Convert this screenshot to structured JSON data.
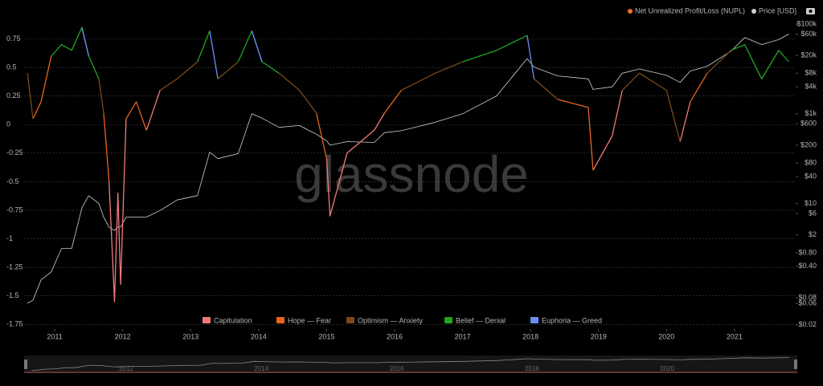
{
  "chart_data": {
    "type": "line",
    "header_series": {
      "name": "Net Unrealized Profit/Loss (NUPL)",
      "color": "#f07020"
    },
    "watermark": "glassnode",
    "x": [
      2010.6,
      2010.68,
      2010.8,
      2010.95,
      2011.1,
      2011.25,
      2011.4,
      2011.5,
      2011.65,
      2011.72,
      2011.8,
      2011.88,
      2011.93,
      2011.97,
      2012.05,
      2012.2,
      2012.35,
      2012.55,
      2012.8,
      2013.1,
      2013.28,
      2013.4,
      2013.7,
      2013.9,
      2014.05,
      2014.3,
      2014.6,
      2014.85,
      2015.0,
      2015.05,
      2015.3,
      2015.7,
      2015.85,
      2016.1,
      2016.6,
      2017.0,
      2017.5,
      2017.95,
      2018.05,
      2018.4,
      2018.85,
      2018.92,
      2019.2,
      2019.35,
      2019.6,
      2020.0,
      2020.2,
      2020.35,
      2020.6,
      2020.95,
      2021.15,
      2021.4,
      2021.65,
      2021.8
    ],
    "xlim": [
      2010.55,
      2021.9
    ],
    "xticks": [
      2011,
      2012,
      2013,
      2014,
      2015,
      2016,
      2017,
      2018,
      2019,
      2020,
      2021
    ],
    "ylim": [
      -1.79,
      0.88
    ],
    "yticks": [
      0.75,
      0.5,
      0.25,
      0,
      -0.25,
      -0.5,
      -0.75,
      -1,
      -1.25,
      -1.5,
      -1.75
    ],
    "y2lim": [
      0.016,
      100000
    ],
    "y2log": true,
    "y2ticks": [
      {
        "value": 100000,
        "label": "$100k"
      },
      {
        "value": 60000,
        "label": "$60k"
      },
      {
        "value": 20000,
        "label": "$20k"
      },
      {
        "value": 8000,
        "label": "$8k"
      },
      {
        "value": 4000,
        "label": "$4k"
      },
      {
        "value": 1000,
        "label": "$1k"
      },
      {
        "value": 600,
        "label": "$600"
      },
      {
        "value": 200,
        "label": "$200"
      },
      {
        "value": 80,
        "label": "$80"
      },
      {
        "value": 40,
        "label": "$40"
      },
      {
        "value": 10,
        "label": "$10"
      },
      {
        "value": 6,
        "label": "$6"
      },
      {
        "value": 2,
        "label": "$2"
      },
      {
        "value": 0.8,
        "label": "$0.80"
      },
      {
        "value": 0.4,
        "label": "$0.40"
      },
      {
        "value": 0.08,
        "label": "$0.08"
      },
      {
        "value": 0.06,
        "label": "$0.06"
      },
      {
        "value": 0.02,
        "label": "$0.02"
      }
    ],
    "grid": true,
    "navigator_ticks": [
      2012,
      2014,
      2016,
      2018,
      2020
    ],
    "series": [
      {
        "name": "Capitulation",
        "color": "#f07a7a",
        "values": [
          null,
          null,
          null,
          null,
          null,
          null,
          null,
          null,
          null,
          null,
          -0.5,
          -1.55,
          -0.6,
          -1.4,
          0.05,
          null,
          -0.05,
          0.3,
          null,
          null,
          null,
          null,
          null,
          null,
          null,
          null,
          null,
          null,
          -0.3,
          -0.8,
          -0.25,
          -0.05,
          0.1,
          null,
          null,
          null,
          null,
          null,
          null,
          null,
          null,
          -0.4,
          -0.1,
          0.3,
          null,
          null,
          -0.15,
          0.2,
          null,
          null,
          null,
          null,
          null,
          null
        ]
      },
      {
        "name": "Hope — Fear",
        "color": "#e8641e",
        "values": [
          null,
          0.05,
          0.2,
          0.6,
          null,
          null,
          null,
          null,
          null,
          0.1,
          -0.5,
          null,
          null,
          null,
          0.05,
          0.2,
          -0.05,
          null,
          null,
          null,
          null,
          null,
          null,
          null,
          null,
          null,
          null,
          0.1,
          -0.3,
          null,
          null,
          null,
          0.1,
          0.3,
          null,
          null,
          null,
          null,
          null,
          0.22,
          0.15,
          -0.4,
          null,
          null,
          null,
          null,
          null,
          0.2,
          0.45,
          null,
          null,
          null,
          null,
          null
        ]
      },
      {
        "name": "Optimism — Anxiety",
        "color": "#7a4a1c",
        "values": [
          0.45,
          0.05,
          null,
          null,
          null,
          null,
          null,
          null,
          0.4,
          0.1,
          null,
          null,
          null,
          null,
          null,
          null,
          null,
          0.3,
          0.4,
          0.55,
          null,
          0.4,
          0.55,
          null,
          null,
          0.45,
          0.3,
          0.1,
          null,
          null,
          null,
          null,
          null,
          0.3,
          0.45,
          0.55,
          null,
          null,
          0.4,
          0.22,
          null,
          null,
          null,
          0.3,
          0.45,
          0.3,
          -0.15,
          null,
          0.45,
          0.65,
          null,
          0.4,
          0.65,
          null
        ]
      },
      {
        "name": "Belief — Denial",
        "color": "#1fa51f",
        "values": [
          null,
          null,
          null,
          0.6,
          0.7,
          0.65,
          0.85,
          0.6,
          0.4,
          null,
          null,
          null,
          null,
          null,
          null,
          null,
          null,
          null,
          null,
          0.55,
          0.82,
          null,
          0.55,
          0.82,
          0.55,
          0.45,
          null,
          null,
          null,
          null,
          null,
          null,
          null,
          null,
          null,
          0.55,
          0.65,
          0.78,
          null,
          null,
          null,
          null,
          null,
          null,
          null,
          null,
          null,
          null,
          null,
          0.65,
          0.7,
          0.4,
          0.65,
          0.55
        ]
      },
      {
        "name": "Euphoria — Greed",
        "color": "#6a8ff5",
        "values": [
          null,
          null,
          null,
          null,
          null,
          null,
          0.85,
          0.6,
          null,
          null,
          null,
          null,
          null,
          null,
          null,
          null,
          null,
          null,
          null,
          null,
          0.82,
          0.4,
          null,
          0.82,
          0.55,
          null,
          null,
          null,
          null,
          null,
          null,
          null,
          null,
          null,
          null,
          null,
          null,
          0.78,
          0.4,
          null,
          null,
          null,
          null,
          null,
          null,
          null,
          null,
          null,
          null,
          null,
          null,
          null,
          null,
          null
        ]
      },
      {
        "name": "Price [USD]",
        "color": "#d0d0d0",
        "axis": "y2",
        "values": [
          0.06,
          0.07,
          0.2,
          0.3,
          1,
          1,
          8,
          15,
          10,
          5,
          3,
          2.5,
          3,
          3,
          5,
          5,
          5,
          7,
          12,
          15,
          140,
          100,
          130,
          1000,
          800,
          500,
          550,
          350,
          250,
          200,
          240,
          230,
          380,
          420,
          650,
          1000,
          2500,
          17000,
          11000,
          7000,
          6000,
          3500,
          4000,
          8000,
          10000,
          7200,
          5000,
          9000,
          11500,
          25000,
          50000,
          35000,
          45000,
          60000
        ]
      }
    ]
  }
}
